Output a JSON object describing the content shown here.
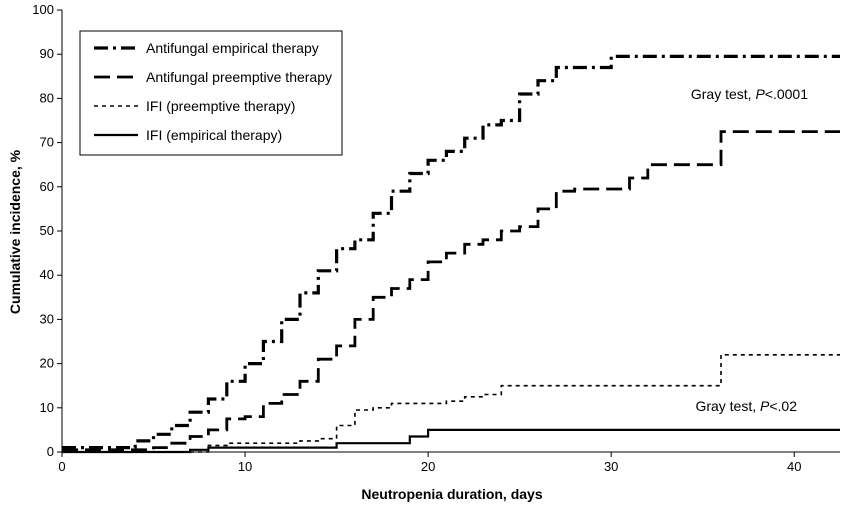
{
  "chart_data": {
    "type": "line",
    "xlabel": "Neutropenia duration, days",
    "ylabel": "Cumulative incidence, %",
    "xlim": [
      0,
      42.5
    ],
    "ylim": [
      0,
      100
    ],
    "xticks": [
      0,
      10,
      20,
      30,
      40
    ],
    "yticks": [
      0,
      10,
      20,
      30,
      40,
      50,
      60,
      70,
      80,
      90,
      100
    ],
    "grid": false,
    "legend_position": "top-left",
    "series": [
      {
        "name": "Antifungal empirical therapy",
        "style": "dash-dot",
        "x": [
          0,
          3,
          4,
          5,
          6,
          7,
          8,
          9,
          10,
          11,
          12,
          13,
          14,
          15,
          16,
          17,
          18,
          19,
          20,
          21,
          22,
          23,
          24,
          25,
          26,
          27,
          28,
          29,
          30,
          31,
          33,
          36,
          42.5
        ],
        "y": [
          1,
          1,
          2.5,
          4,
          6,
          9,
          12,
          16,
          20,
          25,
          30,
          36,
          41,
          46,
          48,
          54,
          59,
          63,
          66,
          68,
          71,
          74,
          75,
          81,
          84,
          87,
          87,
          87,
          89.5,
          89.5,
          89.5,
          89.5,
          89.5
        ]
      },
      {
        "name": "Antifungal preemptive therapy",
        "style": "long-dash",
        "x": [
          0,
          4,
          5,
          6,
          7,
          8,
          9,
          10,
          11,
          12,
          13,
          14,
          15,
          16,
          17,
          18,
          19,
          20,
          21,
          22,
          23,
          24,
          25,
          26,
          27,
          28,
          29,
          30,
          31,
          32,
          33,
          34,
          35,
          36,
          37,
          42.5
        ],
        "y": [
          0.5,
          0.5,
          1,
          2,
          3.5,
          5,
          7.5,
          8,
          11,
          13,
          16,
          21,
          24,
          30,
          35,
          37,
          39,
          43,
          45,
          47,
          48,
          50,
          51,
          55,
          59,
          59.5,
          59.5,
          59.5,
          62,
          65,
          65,
          65,
          65,
          72.5,
          72.5,
          72.5
        ]
      },
      {
        "name": "IFI (preemptive therapy)",
        "style": "short-dash",
        "x": [
          0,
          7,
          8,
          9,
          10,
          11,
          13,
          14,
          15,
          16,
          17,
          18,
          19,
          20,
          21,
          22,
          23,
          24,
          25,
          27,
          35,
          36,
          42.5
        ],
        "y": [
          0,
          0,
          1.5,
          2,
          2,
          2,
          2.5,
          3,
          6,
          9.5,
          10,
          11,
          11,
          11,
          11.5,
          12.5,
          13,
          15,
          15,
          15,
          15,
          22,
          22
        ]
      },
      {
        "name": "IFI (empirical therapy)",
        "style": "solid",
        "x": [
          0,
          6,
          7,
          8,
          9,
          10,
          11,
          12,
          13,
          14,
          15,
          16,
          17,
          18,
          19,
          20,
          21,
          42.5
        ],
        "y": [
          0,
          0,
          0.5,
          1,
          1,
          1,
          1,
          1,
          1,
          1,
          2,
          2,
          2,
          2,
          3.5,
          5,
          5,
          5
        ]
      }
    ],
    "annotations": [
      {
        "text_prefix": "Gray test, ",
        "text_italic": "P",
        "text_suffix": "<.0001",
        "anchor": "upper-right"
      },
      {
        "text_prefix": "Gray test, ",
        "text_italic": "P",
        "text_suffix": "<.02",
        "anchor": "lower-right"
      }
    ]
  }
}
